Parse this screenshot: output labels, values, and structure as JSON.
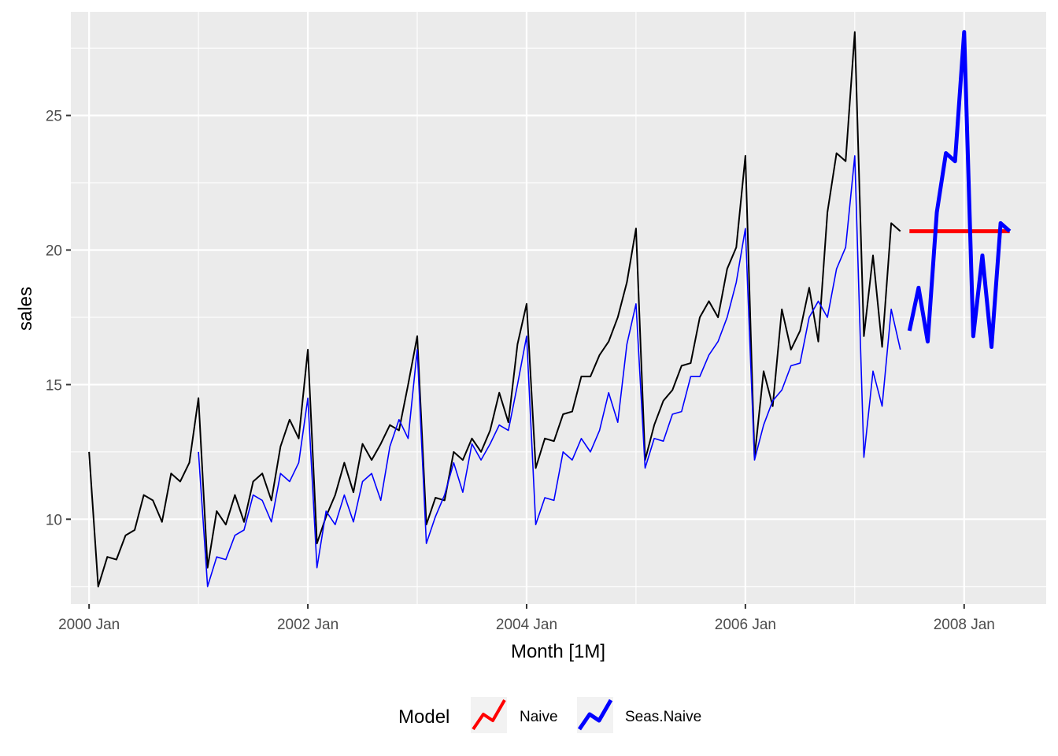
{
  "chart_data": {
    "type": "line",
    "title": "",
    "xlabel": "Month [1M]",
    "ylabel": "sales",
    "x_tick_labels": [
      "2000 Jan",
      "2002 Jan",
      "2004 Jan",
      "2006 Jan",
      "2008 Jan"
    ],
    "x_ticks": [
      "2000-01",
      "2002-01",
      "2004-01",
      "2006-01",
      "2008-01"
    ],
    "y_ticks": [
      10,
      15,
      20,
      25
    ],
    "y_tick_labels": [
      "10",
      "15",
      "20",
      "25"
    ],
    "xlim": [
      "1999-11",
      "2008-10"
    ],
    "ylim": [
      6.85,
      28.85
    ],
    "grid": true,
    "legend": {
      "title": "Model",
      "position": "bottom",
      "entries": [
        "Naive",
        "Seas.Naive"
      ]
    },
    "colors": {
      "history": "#000000",
      "fitted": "#0000ff",
      "naive": "#ff0000",
      "seas_naive": "#0000ff",
      "panel_background": "#ebebeb",
      "grid": "#ffffff"
    },
    "history": {
      "x_start": "2000-01",
      "values": [
        12.5,
        7.5,
        8.6,
        8.5,
        9.4,
        9.6,
        10.9,
        10.7,
        9.9,
        11.7,
        11.4,
        12.1,
        14.5,
        8.2,
        10.3,
        9.8,
        10.9,
        9.9,
        11.4,
        11.7,
        10.7,
        12.7,
        13.7,
        13.0,
        16.3,
        9.1,
        10.1,
        10.9,
        12.1,
        11.0,
        12.8,
        12.2,
        12.8,
        13.5,
        13.3,
        15.0,
        16.8,
        9.8,
        10.8,
        10.7,
        12.5,
        12.2,
        13.0,
        12.5,
        13.3,
        14.7,
        13.6,
        16.5,
        18.0,
        11.9,
        13.0,
        12.9,
        13.9,
        14.0,
        15.3,
        15.3,
        16.1,
        16.6,
        17.5,
        18.8,
        20.8,
        12.2,
        13.5,
        14.4,
        14.8,
        15.7,
        15.8,
        17.5,
        18.1,
        17.5,
        19.3,
        20.1,
        23.5,
        12.3,
        15.5,
        14.2,
        17.8,
        16.3,
        17.0,
        18.6,
        16.6,
        21.4,
        23.6,
        23.3,
        28.1,
        16.8,
        19.8,
        16.4,
        21.0,
        20.7
      ]
    },
    "series": [
      {
        "name": "Naive",
        "x_start": "2007-07",
        "values": [
          20.7,
          20.7,
          20.7,
          20.7,
          20.7,
          20.7,
          20.7,
          20.7,
          20.7,
          20.7,
          20.7,
          20.7
        ]
      },
      {
        "name": "Seas.Naive",
        "x_start": "2007-07",
        "values": [
          17.0,
          18.6,
          16.6,
          21.4,
          23.6,
          23.3,
          28.1,
          16.8,
          19.8,
          16.4,
          21.0,
          20.7
        ]
      }
    ],
    "fitted": {
      "name": "Seas.Naive fitted",
      "x_start": "2001-01",
      "values": [
        12.5,
        7.5,
        8.6,
        8.5,
        9.4,
        9.6,
        10.9,
        10.7,
        9.9,
        11.7,
        11.4,
        12.1,
        14.5,
        8.2,
        10.3,
        9.8,
        10.9,
        9.9,
        11.4,
        11.7,
        10.7,
        12.7,
        13.7,
        13.0,
        16.3,
        9.1,
        10.1,
        10.9,
        12.1,
        11.0,
        12.8,
        12.2,
        12.8,
        13.5,
        13.3,
        15.0,
        16.8,
        9.8,
        10.8,
        10.7,
        12.5,
        12.2,
        13.0,
        12.5,
        13.3,
        14.7,
        13.6,
        16.5,
        18.0,
        11.9,
        13.0,
        12.9,
        13.9,
        14.0,
        15.3,
        15.3,
        16.1,
        16.6,
        17.5,
        18.8,
        20.8,
        12.2,
        13.5,
        14.4,
        14.8,
        15.7,
        15.8,
        17.5,
        18.1,
        17.5,
        19.3,
        20.1,
        23.5,
        12.3,
        15.5,
        14.2,
        17.8,
        16.3
      ]
    }
  }
}
